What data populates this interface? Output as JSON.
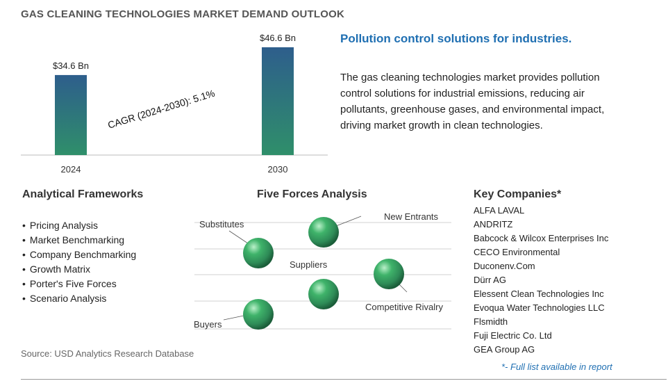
{
  "title": "GAS CLEANING TECHNOLOGIES MARKET DEMAND OUTLOOK",
  "chart_data": {
    "type": "bar",
    "categories": [
      "2024",
      "2030"
    ],
    "values": [
      34.6,
      46.6
    ],
    "data_labels": [
      "$34.6 Bn",
      "$46.6 Bn"
    ],
    "cagr_label": "CAGR (2024-2030):  5.1%",
    "bar_color_top": "#2e5e8c",
    "bar_color_bottom": "#2f8f6a"
  },
  "tagline": "Pollution control solutions for industries.",
  "description": "The gas cleaning technologies market provides pollution control solutions for industrial emissions, reducing air pollutants, greenhouse gases, and environmental impact, driving market growth in clean technologies.",
  "frameworks": {
    "title": "Analytical Frameworks",
    "items": [
      "Pricing Analysis",
      "Market Benchmarking",
      "Company Benchmarking",
      "Growth Matrix",
      "Porter's Five Forces",
      "Scenario Analysis"
    ]
  },
  "five_forces": {
    "title": "Five Forces Analysis",
    "labels": {
      "substitutes": "Substitutes",
      "new_entrants": "New Entrants",
      "suppliers": "Suppliers",
      "competitive_rivalry": "Competitive Rivalry",
      "buyers": "Buyers"
    },
    "sphere_color": "#2e8b57"
  },
  "companies": {
    "title": "Key Companies*",
    "items": [
      "ALFA LAVAL",
      "ANDRITZ",
      "Babcock & Wilcox Enterprises Inc",
      "CECO Environmental",
      "Duconenv.Com",
      "Dürr AG",
      "Elessent Clean Technologies Inc",
      "Evoqua Water Technologies LLC",
      "Flsmidth",
      "Fuji Electric Co. Ltd",
      "GEA Group AG"
    ],
    "footnote": "*- Full list available in report"
  },
  "source": "Source: USD Analytics Research Database"
}
